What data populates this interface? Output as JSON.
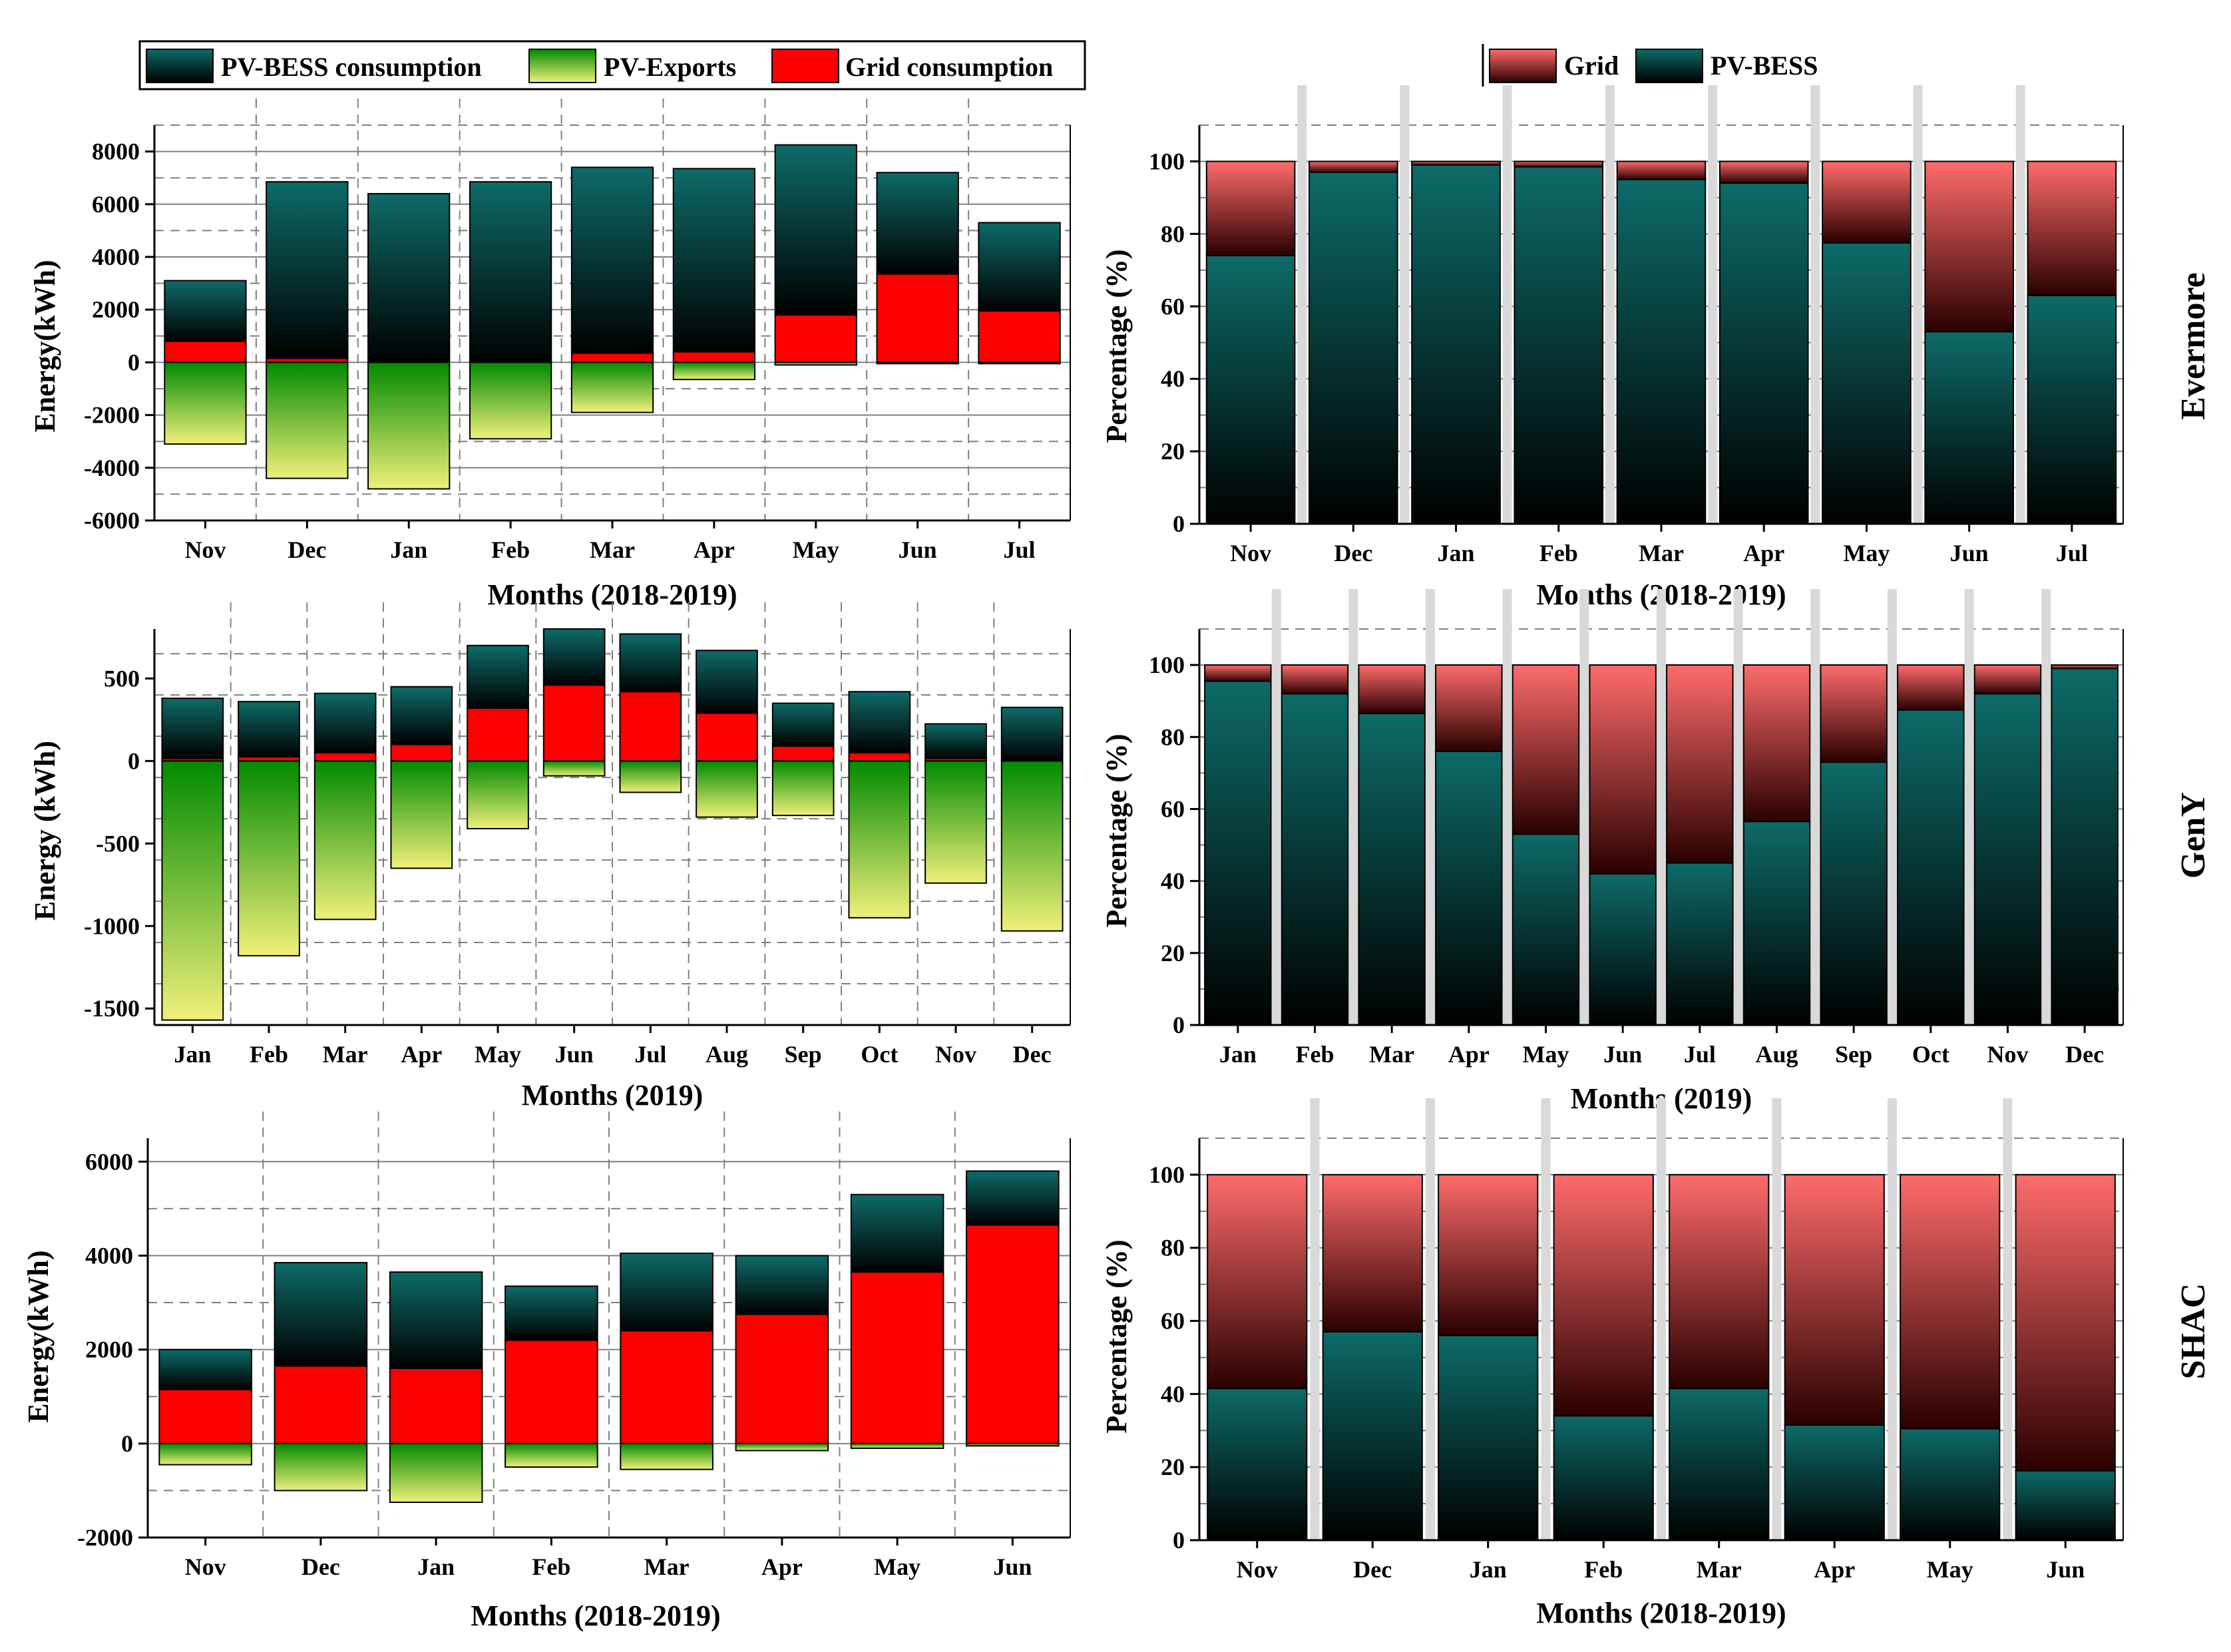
{
  "legends": {
    "left": [
      {
        "label": "PV-BESS consumption",
        "key": "pvbess"
      },
      {
        "label": "PV-Exports",
        "key": "export"
      },
      {
        "label": "Grid consumption",
        "key": "grid"
      }
    ],
    "right": [
      {
        "label": "Grid",
        "key": "gridpct"
      },
      {
        "label": "PV-BESS",
        "key": "pvbesspct"
      }
    ]
  },
  "colors": {
    "pvbess_top": "#0d6b68",
    "pvbess_bottom": "#000000",
    "grid": "#ff0000",
    "export_top": "#008a00",
    "export_bottom": "#f0f07a",
    "gridpct_top": "#ff6b6b",
    "gridpct_bottom": "#2a0000",
    "grid_line": "#7f7f7f",
    "separator": "#d9d9d9"
  },
  "row_labels": [
    "Evermore",
    "GenY",
    "SHAC"
  ],
  "chart_data": [
    {
      "id": "evermore_energy",
      "type": "bar",
      "stacked": true,
      "xlabel": "Months (2018-2019)",
      "ylabel": "Energy(kWh)",
      "ylim": [
        -6000,
        9000
      ],
      "yticks": [
        -6000,
        -4000,
        -2000,
        0,
        2000,
        4000,
        6000,
        8000
      ],
      "categories": [
        "Nov",
        "Dec",
        "Jan",
        "Feb",
        "Mar",
        "Apr",
        "May",
        "Jun",
        "Jul"
      ],
      "series": [
        {
          "name": "Grid consumption",
          "values": [
            800,
            150,
            0,
            0,
            350,
            400,
            1800,
            3350,
            1950
          ]
        },
        {
          "name": "PV-BESS consumption",
          "values": [
            2300,
            6700,
            6400,
            6850,
            7050,
            6950,
            6450,
            3850,
            3350
          ]
        },
        {
          "name": "PV-Exports",
          "values": [
            -3100,
            -4400,
            -4800,
            -2900,
            -1900,
            -650,
            -100,
            -50,
            -50
          ]
        }
      ]
    },
    {
      "id": "evermore_pct",
      "type": "bar",
      "stacked": true,
      "xlabel": "Months (2018-2019)",
      "ylabel": "Percentage (%)",
      "ylim": [
        0,
        110
      ],
      "yticks": [
        0,
        20,
        40,
        60,
        80,
        100
      ],
      "categories": [
        "Nov",
        "Dec",
        "Jan",
        "Feb",
        "Mar",
        "Apr",
        "May",
        "Jun",
        "Jul"
      ],
      "series": [
        {
          "name": "PV-BESS",
          "values": [
            74,
            97,
            99,
            98.5,
            95,
            94,
            77.5,
            53,
            63
          ]
        },
        {
          "name": "Grid",
          "values": [
            26,
            3,
            1,
            1.5,
            5,
            6,
            22.5,
            47,
            37
          ]
        }
      ]
    },
    {
      "id": "geny_energy",
      "type": "bar",
      "stacked": true,
      "xlabel": "Months (2019)",
      "ylabel": "Energy (kWh)",
      "ylim": [
        -1600,
        800
      ],
      "yticks": [
        -1500,
        -1000,
        -500,
        0,
        500
      ],
      "categories": [
        "Jan",
        "Feb",
        "Mar",
        "Apr",
        "May",
        "Jun",
        "Jul",
        "Aug",
        "Sep",
        "Oct",
        "Nov",
        "Dec"
      ],
      "series": [
        {
          "name": "Grid consumption",
          "values": [
            15,
            25,
            50,
            100,
            320,
            460,
            420,
            290,
            90,
            50,
            15,
            5
          ]
        },
        {
          "name": "PV-BESS consumption",
          "values": [
            365,
            335,
            360,
            350,
            380,
            340,
            350,
            380,
            260,
            370,
            210,
            320
          ]
        },
        {
          "name": "PV-Exports",
          "values": [
            -1570,
            -1180,
            -960,
            -650,
            -410,
            -90,
            -190,
            -340,
            -330,
            -950,
            -740,
            -1030
          ]
        }
      ]
    },
    {
      "id": "geny_pct",
      "type": "bar",
      "stacked": true,
      "xlabel": "Months (2019)",
      "ylabel": "Percentage (%)",
      "ylim": [
        0,
        110
      ],
      "yticks": [
        0,
        20,
        40,
        60,
        80,
        100
      ],
      "categories": [
        "Jan",
        "Feb",
        "Mar",
        "Apr",
        "May",
        "Jun",
        "Jul",
        "Aug",
        "Sep",
        "Oct",
        "Nov",
        "Dec"
      ],
      "series": [
        {
          "name": "PV-BESS",
          "values": [
            95.5,
            92,
            86.5,
            76,
            53,
            42,
            45,
            56.5,
            73,
            87.5,
            92,
            99
          ]
        },
        {
          "name": "Grid",
          "values": [
            4.5,
            8,
            13.5,
            24,
            47,
            58,
            55,
            43.5,
            27,
            12.5,
            8,
            1
          ]
        }
      ]
    },
    {
      "id": "shac_energy",
      "type": "bar",
      "stacked": true,
      "xlabel": "Months (2018-2019)",
      "ylabel": "Energy(kWh)",
      "ylim": [
        -2000,
        6500
      ],
      "yticks": [
        -2000,
        0,
        2000,
        4000,
        6000
      ],
      "categories": [
        "Nov",
        "Dec",
        "Jan",
        "Feb",
        "Mar",
        "Apr",
        "May",
        "Jun"
      ],
      "series": [
        {
          "name": "Grid consumption",
          "values": [
            1150,
            1650,
            1600,
            2200,
            2400,
            2750,
            3650,
            4650
          ]
        },
        {
          "name": "PV-BESS consumption",
          "values": [
            850,
            2200,
            2050,
            1150,
            1650,
            1250,
            1650,
            1150
          ]
        },
        {
          "name": "PV-Exports",
          "values": [
            -450,
            -1000,
            -1250,
            -500,
            -550,
            -150,
            -100,
            -50
          ]
        }
      ]
    },
    {
      "id": "shac_pct",
      "type": "bar",
      "stacked": true,
      "xlabel": "Months (2018-2019)",
      "ylabel": "Percentage (%)",
      "ylim": [
        0,
        110
      ],
      "yticks": [
        0,
        20,
        40,
        60,
        80,
        100
      ],
      "categories": [
        "Nov",
        "Dec",
        "Jan",
        "Feb",
        "Mar",
        "Apr",
        "May",
        "Jun"
      ],
      "series": [
        {
          "name": "PV-BESS",
          "values": [
            41.5,
            57,
            56,
            34,
            41.5,
            31.5,
            30.5,
            19
          ]
        },
        {
          "name": "Grid",
          "values": [
            58.5,
            43,
            44,
            66,
            58.5,
            68.5,
            69.5,
            81
          ]
        }
      ]
    }
  ]
}
